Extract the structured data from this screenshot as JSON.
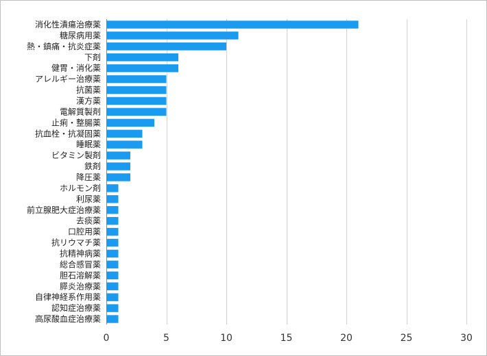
{
  "chart_data": {
    "type": "bar",
    "orientation": "horizontal",
    "title": "",
    "xlabel": "",
    "ylabel": "",
    "xlim": [
      0,
      30
    ],
    "x_ticks": [
      "0",
      "5",
      "10",
      "15",
      "20",
      "25",
      "30"
    ],
    "grid": true,
    "legend": "none",
    "bar_color": "#1a9bf0",
    "categories": [
      "消化性潰瘍治療薬",
      "糖尿病用薬",
      "熱・鎮痛・抗炎症薬",
      "下剤",
      "健胃・消化薬",
      "アレルギー治療薬",
      "抗菌薬",
      "漢方薬",
      "電解質製剤",
      "止痢・整腸薬",
      "抗血栓・抗凝固薬",
      "睡眠薬",
      "ビタミン製剤",
      "鉄剤",
      "降圧薬",
      "ホルモン剤",
      "利尿薬",
      "前立腺肥大症治療薬",
      "去痰薬",
      "口腔用薬",
      "抗リウマチ薬",
      "抗精神病薬",
      "総合感冒薬",
      "胆石溶解薬",
      "膵炎治療薬",
      "自律神経系作用薬",
      "認知症治療薬",
      "高尿酸血症治療薬"
    ],
    "values": [
      21,
      11,
      10,
      6,
      6,
      5,
      5,
      5,
      5,
      4,
      3,
      3,
      2,
      2,
      2,
      1,
      1,
      1,
      1,
      1,
      1,
      1,
      1,
      1,
      1,
      1,
      1,
      1
    ]
  }
}
